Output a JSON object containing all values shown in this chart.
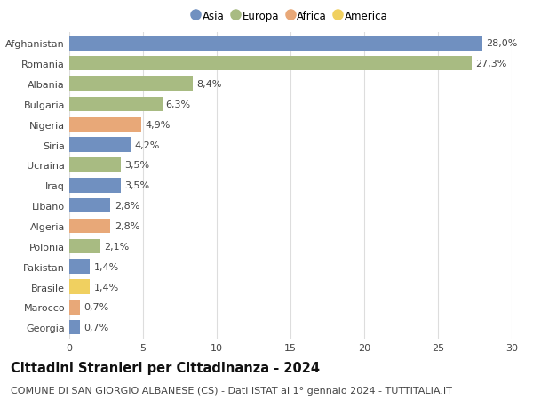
{
  "countries": [
    "Afghanistan",
    "Romania",
    "Albania",
    "Bulgaria",
    "Nigeria",
    "Siria",
    "Ucraina",
    "Iraq",
    "Libano",
    "Algeria",
    "Polonia",
    "Pakistan",
    "Brasile",
    "Marocco",
    "Georgia"
  ],
  "values": [
    28.0,
    27.3,
    8.4,
    6.3,
    4.9,
    4.2,
    3.5,
    3.5,
    2.8,
    2.8,
    2.1,
    1.4,
    1.4,
    0.7,
    0.7
  ],
  "labels": [
    "28,0%",
    "27,3%",
    "8,4%",
    "6,3%",
    "4,9%",
    "4,2%",
    "3,5%",
    "3,5%",
    "2,8%",
    "2,8%",
    "2,1%",
    "1,4%",
    "1,4%",
    "0,7%",
    "0,7%"
  ],
  "continents": [
    "Asia",
    "Europa",
    "Europa",
    "Europa",
    "Africa",
    "Asia",
    "Europa",
    "Asia",
    "Asia",
    "Africa",
    "Europa",
    "Asia",
    "America",
    "Africa",
    "Asia"
  ],
  "colors": {
    "Asia": "#7090c0",
    "Europa": "#a8bb82",
    "Africa": "#e8a878",
    "America": "#f0d060"
  },
  "legend_order": [
    "Asia",
    "Europa",
    "Africa",
    "America"
  ],
  "title": "Cittadini Stranieri per Cittadinanza - 2024",
  "subtitle": "COMUNE DI SAN GIORGIO ALBANESE (CS) - Dati ISTAT al 1° gennaio 2024 - TUTTITALIA.IT",
  "xlim": [
    0,
    30
  ],
  "xticks": [
    0,
    5,
    10,
    15,
    20,
    25,
    30
  ],
  "background_color": "#ffffff",
  "grid_color": "#dddddd",
  "bar_height": 0.72,
  "title_fontsize": 10.5,
  "subtitle_fontsize": 8.0,
  "label_fontsize": 8.0,
  "tick_fontsize": 8.0,
  "legend_fontsize": 8.5
}
